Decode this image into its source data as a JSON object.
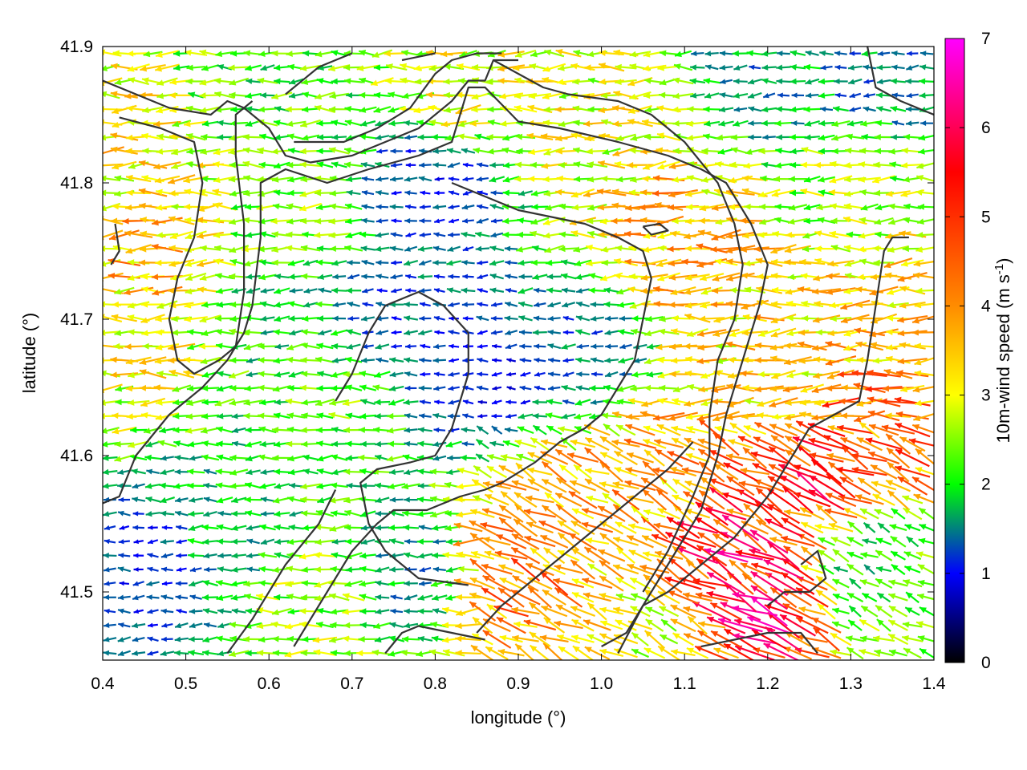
{
  "chart_data": {
    "type": "vector-field",
    "xlabel": "longitude (°)",
    "ylabel": "latitude (°)",
    "xlim": [
      0.4,
      1.4
    ],
    "ylim": [
      41.45,
      41.9
    ],
    "xticks": [
      "0.4",
      "0.5",
      "0.6",
      "0.7",
      "0.8",
      "0.9",
      "1.0",
      "1.1",
      "1.2",
      "1.3",
      "1.4"
    ],
    "yticks": [
      "41.5",
      "41.6",
      "41.7",
      "41.8",
      "41.9"
    ],
    "colorbar": {
      "label": "10m-wind speed (m s",
      "label_sup": "-1",
      "label_end": ")",
      "range": [
        0,
        7
      ],
      "ticks": [
        "0",
        "1",
        "2",
        "3",
        "4",
        "5",
        "6",
        "7"
      ],
      "colormap": [
        "#000000",
        "#0000ff",
        "#00ff00",
        "#ffff00",
        "#ff8c00",
        "#ff0000",
        "#ff00ff"
      ],
      "colormap_stops": [
        0,
        1,
        2,
        3,
        4,
        5.5,
        7
      ]
    },
    "wind_regions": [
      {
        "lon": 0.45,
        "lat": 41.75,
        "speed": 3.6
      },
      {
        "lon": 0.46,
        "lat": 41.82,
        "speed": 3.2
      },
      {
        "lon": 0.43,
        "lat": 41.68,
        "speed": 3.0
      },
      {
        "lon": 0.58,
        "lat": 41.86,
        "speed": 2.2
      },
      {
        "lon": 0.62,
        "lat": 41.7,
        "speed": 2.0
      },
      {
        "lon": 0.68,
        "lat": 41.63,
        "speed": 2.3
      },
      {
        "lon": 0.55,
        "lat": 41.55,
        "speed": 1.8
      },
      {
        "lon": 0.46,
        "lat": 41.52,
        "speed": 1.2
      },
      {
        "lon": 0.66,
        "lat": 41.49,
        "speed": 2.6
      },
      {
        "lon": 0.75,
        "lat": 41.7,
        "speed": 1.3
      },
      {
        "lon": 0.8,
        "lat": 41.8,
        "speed": 1.2
      },
      {
        "lon": 0.86,
        "lat": 41.66,
        "speed": 1.0
      },
      {
        "lon": 0.98,
        "lat": 41.68,
        "speed": 1.4
      },
      {
        "lon": 0.84,
        "lat": 41.87,
        "speed": 3.0
      },
      {
        "lon": 1.0,
        "lat": 41.84,
        "speed": 3.0
      },
      {
        "lon": 1.08,
        "lat": 41.76,
        "speed": 3.7
      },
      {
        "lon": 1.15,
        "lat": 41.72,
        "speed": 3.4
      },
      {
        "lon": 1.22,
        "lat": 41.66,
        "speed": 3.3
      },
      {
        "lon": 1.3,
        "lat": 41.8,
        "speed": 2.6
      },
      {
        "lon": 0.9,
        "lat": 41.52,
        "speed": 4.2
      },
      {
        "lon": 0.98,
        "lat": 41.56,
        "speed": 3.6
      },
      {
        "lon": 1.06,
        "lat": 41.58,
        "speed": 3.8
      },
      {
        "lon": 1.14,
        "lat": 41.52,
        "speed": 5.2
      },
      {
        "lon": 1.19,
        "lat": 41.5,
        "speed": 5.4
      },
      {
        "lon": 1.25,
        "lat": 41.59,
        "speed": 5.0
      },
      {
        "lon": 1.32,
        "lat": 41.62,
        "speed": 4.4
      },
      {
        "lon": 1.35,
        "lat": 41.7,
        "speed": 3.4
      },
      {
        "lon": 1.06,
        "lat": 41.48,
        "speed": 3.0
      },
      {
        "lon": 1.32,
        "lat": 41.52,
        "speed": 2.0
      },
      {
        "lon": 1.2,
        "lat": 41.88,
        "speed": 1.6
      },
      {
        "lon": 1.33,
        "lat": 41.88,
        "speed": 1.5
      },
      {
        "lon": 0.76,
        "lat": 41.52,
        "speed": 1.6
      },
      {
        "lon": 0.62,
        "lat": 41.78,
        "speed": 2.4
      }
    ],
    "contours": [
      [
        [
          0.4,
          41.565
        ],
        [
          0.42,
          41.57
        ],
        [
          0.44,
          41.6
        ],
        [
          0.48,
          41.63
        ],
        [
          0.52,
          41.65
        ],
        [
          0.55,
          41.67
        ],
        [
          0.57,
          41.69
        ],
        [
          0.58,
          41.71
        ],
        [
          0.59,
          41.76
        ],
        [
          0.59,
          41.8
        ],
        [
          0.62,
          41.81
        ],
        [
          0.67,
          41.8
        ],
        [
          0.72,
          41.81
        ],
        [
          0.78,
          41.82
        ],
        [
          0.82,
          41.83
        ],
        [
          0.84,
          41.87
        ],
        [
          0.86,
          41.87
        ],
        [
          0.9,
          41.845
        ],
        [
          0.95,
          41.84
        ],
        [
          1.02,
          41.83
        ],
        [
          1.08,
          41.82
        ],
        [
          1.12,
          41.81
        ],
        [
          1.15,
          41.8
        ],
        [
          1.18,
          41.77
        ],
        [
          1.2,
          41.74
        ],
        [
          1.19,
          41.71
        ],
        [
          1.17,
          41.67
        ],
        [
          1.15,
          41.63
        ],
        [
          1.14,
          41.6
        ],
        [
          1.12,
          41.56
        ],
        [
          1.09,
          41.53
        ],
        [
          1.05,
          41.49
        ],
        [
          1.02,
          41.455
        ]
      ],
      [
        [
          0.4,
          41.875
        ],
        [
          0.44,
          41.865
        ],
        [
          0.48,
          41.855
        ],
        [
          0.53,
          41.85
        ],
        [
          0.55,
          41.86
        ],
        [
          0.57,
          41.855
        ],
        [
          0.6,
          41.84
        ],
        [
          0.62,
          41.82
        ],
        [
          0.65,
          41.815
        ],
        [
          0.7,
          41.82
        ],
        [
          0.74,
          41.83
        ],
        [
          0.78,
          41.84
        ],
        [
          0.82,
          41.86
        ],
        [
          0.84,
          41.875
        ],
        [
          0.86,
          41.875
        ],
        [
          0.87,
          41.89
        ],
        [
          0.9,
          41.89
        ]
      ],
      [
        [
          0.42,
          41.848
        ],
        [
          0.47,
          41.84
        ],
        [
          0.51,
          41.83
        ],
        [
          0.52,
          41.8
        ],
        [
          0.51,
          41.76
        ],
        [
          0.49,
          41.73
        ],
        [
          0.48,
          41.7
        ],
        [
          0.49,
          41.67
        ],
        [
          0.51,
          41.66
        ],
        [
          0.54,
          41.67
        ],
        [
          0.56,
          41.68
        ],
        [
          0.57,
          41.72
        ],
        [
          0.57,
          41.77
        ],
        [
          0.56,
          41.82
        ],
        [
          0.56,
          41.85
        ],
        [
          0.58,
          41.86
        ]
      ],
      [
        [
          0.415,
          41.77
        ],
        [
          0.42,
          41.75
        ],
        [
          0.41,
          41.74
        ]
      ],
      [
        [
          0.63,
          41.83
        ],
        [
          0.69,
          41.83
        ],
        [
          0.73,
          41.84
        ],
        [
          0.77,
          41.855
        ],
        [
          0.8,
          41.88
        ],
        [
          0.82,
          41.89
        ],
        [
          0.85,
          41.895
        ],
        [
          0.88,
          41.895
        ]
      ],
      [
        [
          0.87,
          41.89
        ],
        [
          0.9,
          41.88
        ],
        [
          0.93,
          41.87
        ],
        [
          0.96,
          41.865
        ],
        [
          1.02,
          41.86
        ],
        [
          1.06,
          41.85
        ],
        [
          1.1,
          41.83
        ],
        [
          1.14,
          41.8
        ],
        [
          1.16,
          41.77
        ],
        [
          1.17,
          41.74
        ],
        [
          1.16,
          41.7
        ],
        [
          1.14,
          41.67
        ],
        [
          1.13,
          41.63
        ],
        [
          1.13,
          41.6
        ],
        [
          1.11,
          41.57
        ],
        [
          1.08,
          41.53
        ],
        [
          1.05,
          41.5
        ]
      ],
      [
        [
          0.68,
          41.64
        ],
        [
          0.7,
          41.66
        ],
        [
          0.72,
          41.69
        ],
        [
          0.74,
          41.71
        ],
        [
          0.78,
          41.72
        ],
        [
          0.81,
          41.71
        ],
        [
          0.84,
          41.69
        ],
        [
          0.84,
          41.66
        ],
        [
          0.82,
          41.62
        ],
        [
          0.8,
          41.6
        ],
        [
          0.77,
          41.595
        ],
        [
          0.73,
          41.59
        ],
        [
          0.71,
          41.58
        ],
        [
          0.72,
          41.55
        ],
        [
          0.74,
          41.53
        ],
        [
          0.78,
          41.51
        ],
        [
          0.84,
          41.505
        ]
      ],
      [
        [
          0.63,
          41.46
        ],
        [
          0.67,
          41.5
        ],
        [
          0.7,
          41.53
        ],
        [
          0.73,
          41.55
        ],
        [
          0.75,
          41.56
        ],
        [
          0.79,
          41.56
        ],
        [
          0.83,
          41.57
        ],
        [
          0.86,
          41.575
        ],
        [
          0.88,
          41.58
        ],
        [
          0.92,
          41.595
        ],
        [
          0.95,
          41.61
        ],
        [
          0.98,
          41.62
        ],
        [
          1.0,
          41.63
        ],
        [
          1.02,
          41.65
        ],
        [
          1.04,
          41.67
        ],
        [
          1.05,
          41.7
        ],
        [
          1.06,
          41.73
        ],
        [
          1.05,
          41.75
        ],
        [
          1.02,
          41.76
        ],
        [
          0.98,
          41.77
        ],
        [
          0.94,
          41.775
        ],
        [
          0.9,
          41.78
        ],
        [
          0.86,
          41.79
        ],
        [
          0.82,
          41.8
        ]
      ],
      [
        [
          1.0,
          41.46
        ],
        [
          1.03,
          41.47
        ],
        [
          1.05,
          41.49
        ],
        [
          1.08,
          41.5
        ],
        [
          1.12,
          41.52
        ],
        [
          1.16,
          41.54
        ],
        [
          1.2,
          41.57
        ],
        [
          1.23,
          41.6
        ],
        [
          1.25,
          41.62
        ],
        [
          1.28,
          41.63
        ],
        [
          1.31,
          41.64
        ],
        [
          1.32,
          41.67
        ],
        [
          1.33,
          41.71
        ],
        [
          1.34,
          41.75
        ],
        [
          1.35,
          41.76
        ],
        [
          1.37,
          41.76
        ]
      ],
      [
        [
          0.85,
          41.47
        ],
        [
          0.88,
          41.49
        ],
        [
          0.92,
          41.51
        ],
        [
          0.96,
          41.53
        ],
        [
          1.0,
          41.55
        ],
        [
          1.04,
          41.57
        ],
        [
          1.08,
          41.59
        ],
        [
          1.11,
          41.61
        ]
      ],
      [
        [
          0.55,
          41.455
        ],
        [
          0.58,
          41.48
        ],
        [
          0.62,
          41.52
        ],
        [
          0.66,
          41.55
        ],
        [
          0.68,
          41.575
        ]
      ],
      [
        [
          0.74,
          41.455
        ],
        [
          0.76,
          41.47
        ],
        [
          0.78,
          41.475
        ],
        [
          0.82,
          41.47
        ],
        [
          0.86,
          41.465
        ]
      ],
      [
        [
          1.12,
          41.46
        ],
        [
          1.16,
          41.465
        ],
        [
          1.2,
          41.47
        ],
        [
          1.24,
          41.47
        ],
        [
          1.26,
          41.455
        ]
      ],
      [
        [
          1.2,
          41.49
        ],
        [
          1.22,
          41.5
        ],
        [
          1.25,
          41.5
        ],
        [
          1.27,
          41.51
        ],
        [
          1.26,
          41.53
        ],
        [
          1.24,
          41.52
        ]
      ],
      [
        [
          1.05,
          41.768
        ],
        [
          1.07,
          41.77
        ],
        [
          1.08,
          41.765
        ],
        [
          1.06,
          41.762
        ],
        [
          1.05,
          41.768
        ]
      ],
      [
        [
          1.32,
          41.9
        ],
        [
          1.33,
          41.87
        ],
        [
          1.36,
          41.86
        ],
        [
          1.4,
          41.85
        ]
      ],
      [
        [
          0.62,
          41.865
        ],
        [
          0.66,
          41.885
        ],
        [
          0.7,
          41.895
        ]
      ],
      [
        [
          0.76,
          41.89
        ],
        [
          0.8,
          41.895
        ]
      ]
    ]
  }
}
